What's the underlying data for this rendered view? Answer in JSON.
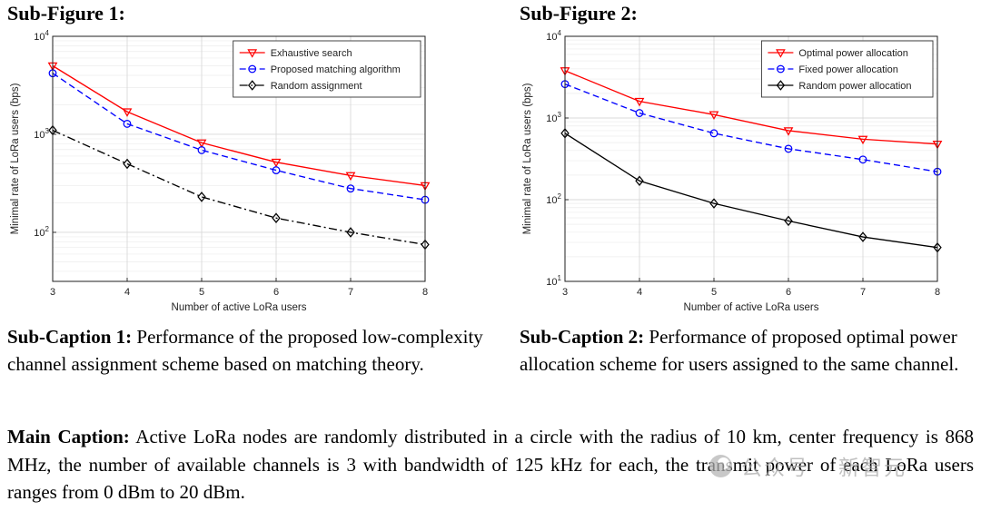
{
  "figure": {
    "subfigure1_title": "Sub-Figure 1:",
    "subfigure2_title": "Sub-Figure 2:",
    "subcaption1_label": "Sub-Caption 1:",
    "subcaption1_text": " Performance of the proposed low-complexity channel assignment scheme based on matching theory.",
    "subcaption2_label": "Sub-Caption 2:",
    "subcaption2_text": " Performance of proposed optimal power allocation scheme for users assigned to the same channel.",
    "main_caption_label": "Main Caption:",
    "main_caption_text": " Active LoRa nodes are randomly distributed in a circle with the radius of 10 km, center frequency is 868 MHz, the number of available channels is 3 with bandwidth of 125 kHz for each, the transmit power of each LoRa users ranges from 0 dBm to 20 dBm."
  },
  "watermark": {
    "prefix": "公众号",
    "name": "新智元"
  },
  "chart_data": [
    {
      "type": "line",
      "title": "",
      "xlabel": "Number of active LoRa users",
      "ylabel": "Minimal rate of LoRa users (bps)",
      "x": [
        3,
        4,
        5,
        6,
        7,
        8
      ],
      "x_ticks": [
        3,
        4,
        5,
        6,
        7,
        8
      ],
      "xlim": [
        3,
        8
      ],
      "yscale": "log",
      "ylim": [
        31.6,
        10000
      ],
      "y_ticks": [
        100,
        1000,
        10000
      ],
      "grid": true,
      "legend_position": "top-right",
      "series": [
        {
          "name": "Exhaustive search",
          "values": [
            5000,
            1700,
            820,
            520,
            380,
            300
          ],
          "color": "#ff0000",
          "line_style": "solid",
          "marker": "triangle-down"
        },
        {
          "name": "Proposed matching algorithm",
          "values": [
            4200,
            1280,
            690,
            430,
            280,
            215
          ],
          "color": "#0000ff",
          "line_style": "dashed",
          "marker": "circle"
        },
        {
          "name": "Random assignment",
          "values": [
            1100,
            500,
            230,
            140,
            100,
            75
          ],
          "color": "#000000",
          "line_style": "dash-dot",
          "marker": "diamond"
        }
      ]
    },
    {
      "type": "line",
      "title": "",
      "xlabel": "Number of active LoRa users",
      "ylabel": "Minimal rate of LoRa users (bps)",
      "x": [
        3,
        4,
        5,
        6,
        7,
        8
      ],
      "x_ticks": [
        3,
        4,
        5,
        6,
        7,
        8
      ],
      "xlim": [
        3,
        8
      ],
      "yscale": "log",
      "ylim": [
        10,
        10000
      ],
      "y_ticks": [
        10,
        100,
        1000,
        10000
      ],
      "grid": true,
      "legend_position": "top-right",
      "series": [
        {
          "name": "Optimal power allocation",
          "values": [
            3800,
            1600,
            1100,
            700,
            550,
            480
          ],
          "color": "#ff0000",
          "line_style": "solid",
          "marker": "triangle-down"
        },
        {
          "name": "Fixed power allocation",
          "values": [
            2600,
            1150,
            650,
            420,
            310,
            220
          ],
          "color": "#0000ff",
          "line_style": "dashed",
          "marker": "circle"
        },
        {
          "name": "Random power allocation",
          "values": [
            650,
            170,
            90,
            55,
            35,
            26
          ],
          "color": "#000000",
          "line_style": "solid",
          "marker": "diamond"
        }
      ]
    }
  ]
}
